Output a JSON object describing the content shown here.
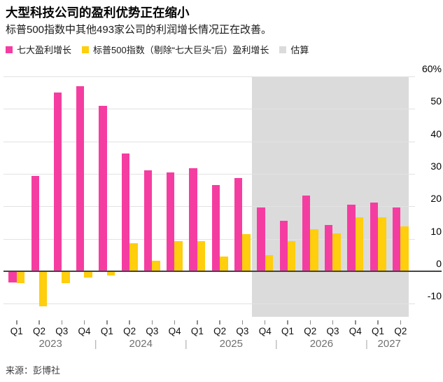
{
  "header": {
    "title": "大型科技公司的盈利优势正在缩小",
    "subtitle": "标普500指数中其他493家公司的利润增长情况正在改善。"
  },
  "source": "来源：彭博社",
  "colors": {
    "mag7": "#F53DA1",
    "sp_ex_mag7": "#FFCE0D",
    "estimate_shade": "#DBDBDB",
    "gridline": "#E2E2E2",
    "zero_line": "#454545"
  },
  "chart_data": {
    "type": "bar",
    "title": "大型科技公司的盈利优势正在缩小",
    "subtitle": "标普500指数中其他493家公司的利润增长情况正在改善。",
    "categories": [
      "Q1",
      "Q2",
      "Q3",
      "Q4",
      "Q1",
      "Q2",
      "Q3",
      "Q4",
      "Q1",
      "Q2",
      "Q3",
      "Q4",
      "Q1",
      "Q2",
      "Q3",
      "Q4",
      "Q1",
      "Q2"
    ],
    "years": [
      {
        "label": "2023",
        "quarters": 4
      },
      {
        "label": "2024",
        "quarters": 4
      },
      {
        "label": "2025",
        "quarters": 4
      },
      {
        "label": "2026",
        "quarters": 4
      },
      {
        "label": "2027",
        "quarters": 2
      }
    ],
    "series": [
      {
        "key": "mag7",
        "name": "七大盈利增长",
        "color": "#F53DA1",
        "values": [
          -3.5,
          29.3,
          55.0,
          57.0,
          51.0,
          36.2,
          31.1,
          30.5,
          31.7,
          26.5,
          28.7,
          19.6,
          15.5,
          23.3,
          14.3,
          20.6,
          21.1,
          19.6
        ]
      },
      {
        "key": "sp493",
        "name": "标普500指数（剔除“七大巨头”后）盈利增长",
        "color": "#FFCE0D",
        "values": [
          -3.6,
          -10.8,
          -3.7,
          -1.9,
          -1.4,
          8.6,
          3.2,
          9.2,
          9.2,
          4.5,
          11.4,
          4.9,
          9.3,
          13.0,
          11.7,
          16.5,
          16.7,
          13.7
        ]
      }
    ],
    "estimate": {
      "label": "估算",
      "color": "#DBDBDB",
      "start_index": 11
    },
    "unit": "%",
    "ylim": [
      -14.5,
      60
    ],
    "y_ticks": [
      60,
      50,
      40,
      30,
      20,
      10,
      0,
      -10
    ],
    "y_tick_labels": [
      "60%",
      "50",
      "40",
      "30",
      "20",
      "10",
      "0",
      "-10"
    ],
    "grid": true,
    "legend_position": "top"
  }
}
